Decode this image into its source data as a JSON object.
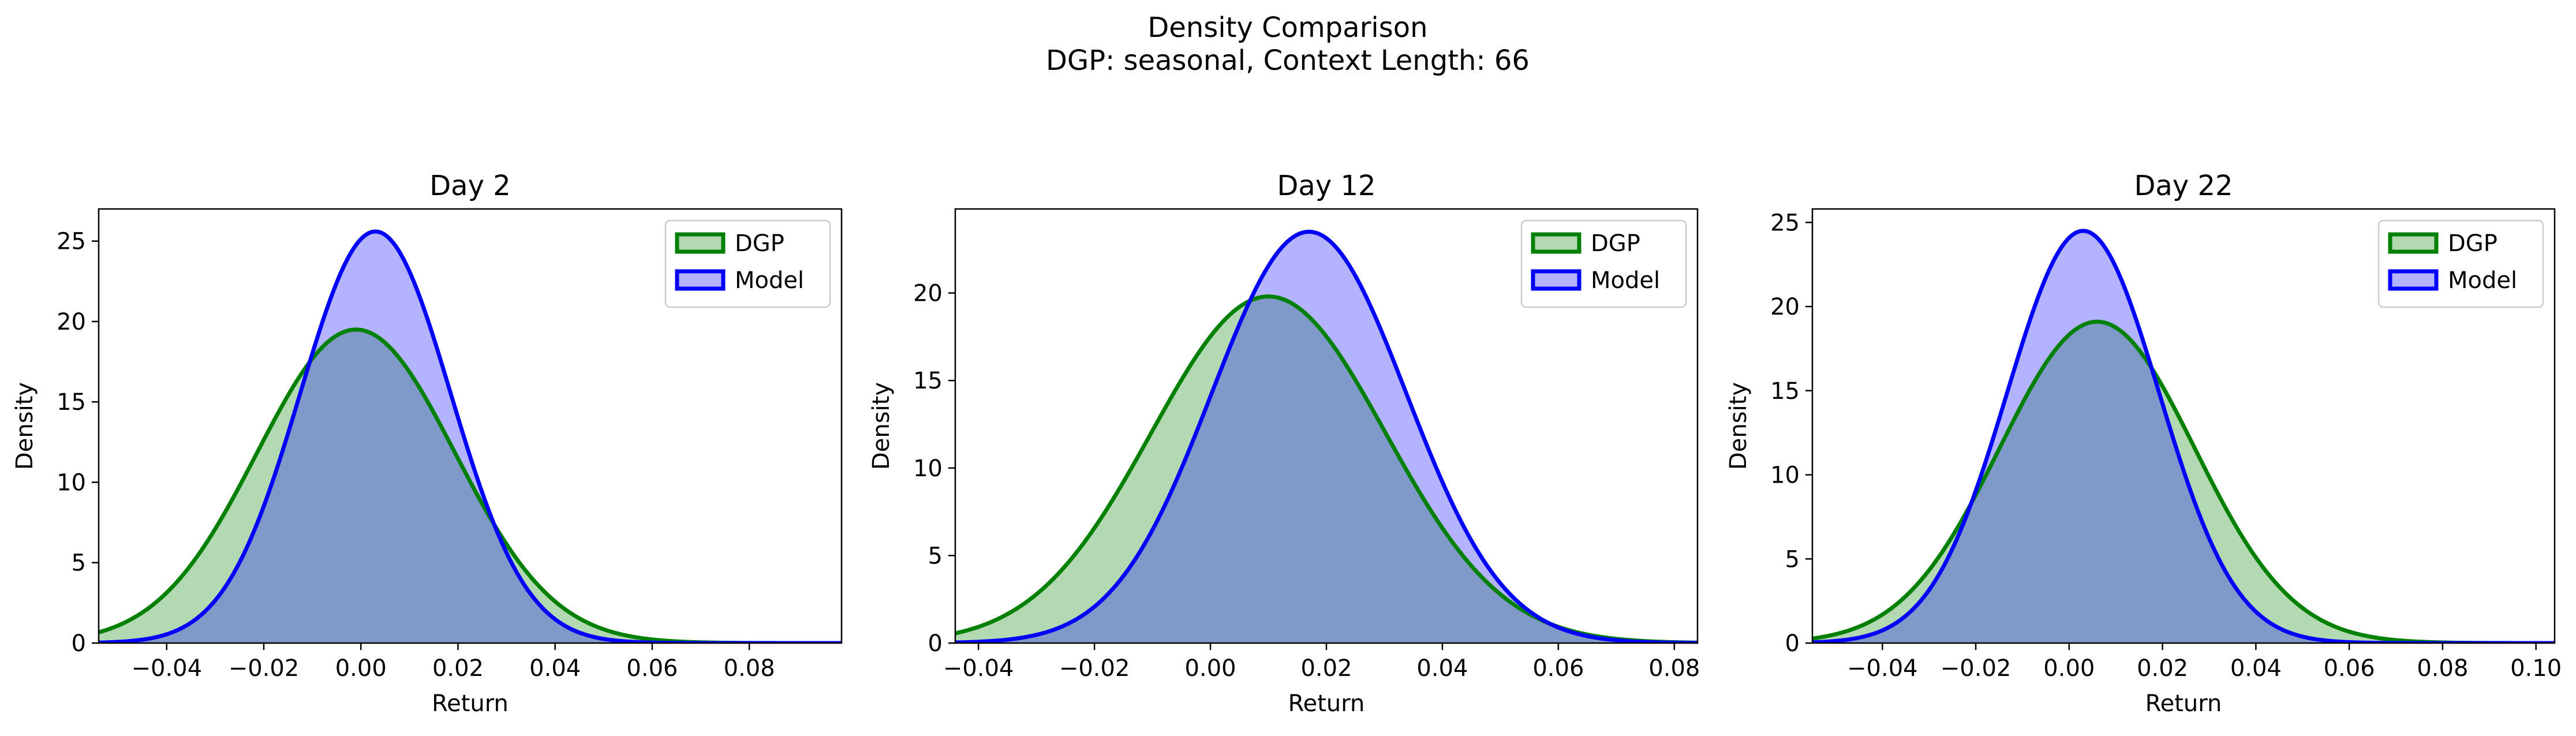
{
  "figure": {
    "title_line1": "Density Comparison",
    "title_line2": "DGP: seasonal, Context Length: 66"
  },
  "colors": {
    "dgp_line": "#008000",
    "dgp_fill": "#b3d9b3",
    "model_line": "#0000ff",
    "model_fill": "#b3b3ff",
    "overlap_fill": "#7f99c8"
  },
  "chart_data": [
    {
      "type": "area",
      "title": "Day 2",
      "xlabel": "Return",
      "ylabel": "Density",
      "xlim": [
        -0.054,
        0.099
      ],
      "ylim": [
        0,
        27
      ],
      "xticks": [
        -0.04,
        -0.02,
        0.0,
        0.02,
        0.04,
        0.06,
        0.08
      ],
      "xtick_labels": [
        "−0.04",
        "−0.02",
        "0.00",
        "0.02",
        "0.04",
        "0.06",
        "0.08"
      ],
      "yticks": [
        0,
        5,
        10,
        15,
        20,
        25
      ],
      "ytick_labels": [
        "0",
        "5",
        "10",
        "15",
        "20",
        "25"
      ],
      "legend": "top-right",
      "series": [
        {
          "name": "DGP",
          "mean": -0.001,
          "sd": 0.0204,
          "peak": 19.5
        },
        {
          "name": "Model",
          "mean": 0.003,
          "sd": 0.0155,
          "peak": 25.6
        }
      ]
    },
    {
      "type": "area",
      "title": "Day 12",
      "xlabel": "Return",
      "ylabel": "Density",
      "xlim": [
        -0.044,
        0.084
      ],
      "ylim": [
        0,
        24.8
      ],
      "xticks": [
        -0.04,
        -0.02,
        0.0,
        0.02,
        0.04,
        0.06,
        0.08
      ],
      "xtick_labels": [
        "−0.04",
        "−0.02",
        "0.00",
        "0.02",
        "0.04",
        "0.06",
        "0.08"
      ],
      "yticks": [
        0,
        5,
        10,
        15,
        20
      ],
      "ytick_labels": [
        "0",
        "5",
        "10",
        "15",
        "20"
      ],
      "legend": "top-right",
      "series": [
        {
          "name": "DGP",
          "mean": 0.01,
          "sd": 0.0202,
          "peak": 19.8
        },
        {
          "name": "Model",
          "mean": 0.017,
          "sd": 0.0168,
          "peak": 23.5
        }
      ]
    },
    {
      "type": "area",
      "title": "Day 22",
      "xlabel": "Return",
      "ylabel": "Density",
      "xlim": [
        -0.055,
        0.104
      ],
      "ylim": [
        0,
        25.8
      ],
      "xticks": [
        -0.04,
        -0.02,
        0.0,
        0.02,
        0.04,
        0.06,
        0.08,
        0.1
      ],
      "xtick_labels": [
        "−0.04",
        "−0.02",
        "0.00",
        "0.02",
        "0.04",
        "0.06",
        "0.08",
        "0.10"
      ],
      "yticks": [
        0,
        5,
        10,
        15,
        20,
        25
      ],
      "ytick_labels": [
        "0",
        "5",
        "10",
        "15",
        "20",
        "25"
      ],
      "legend": "top-right",
      "series": [
        {
          "name": "DGP",
          "mean": 0.006,
          "sd": 0.0209,
          "peak": 19.1
        },
        {
          "name": "Model",
          "mean": 0.003,
          "sd": 0.0163,
          "peak": 24.5
        }
      ]
    }
  ]
}
